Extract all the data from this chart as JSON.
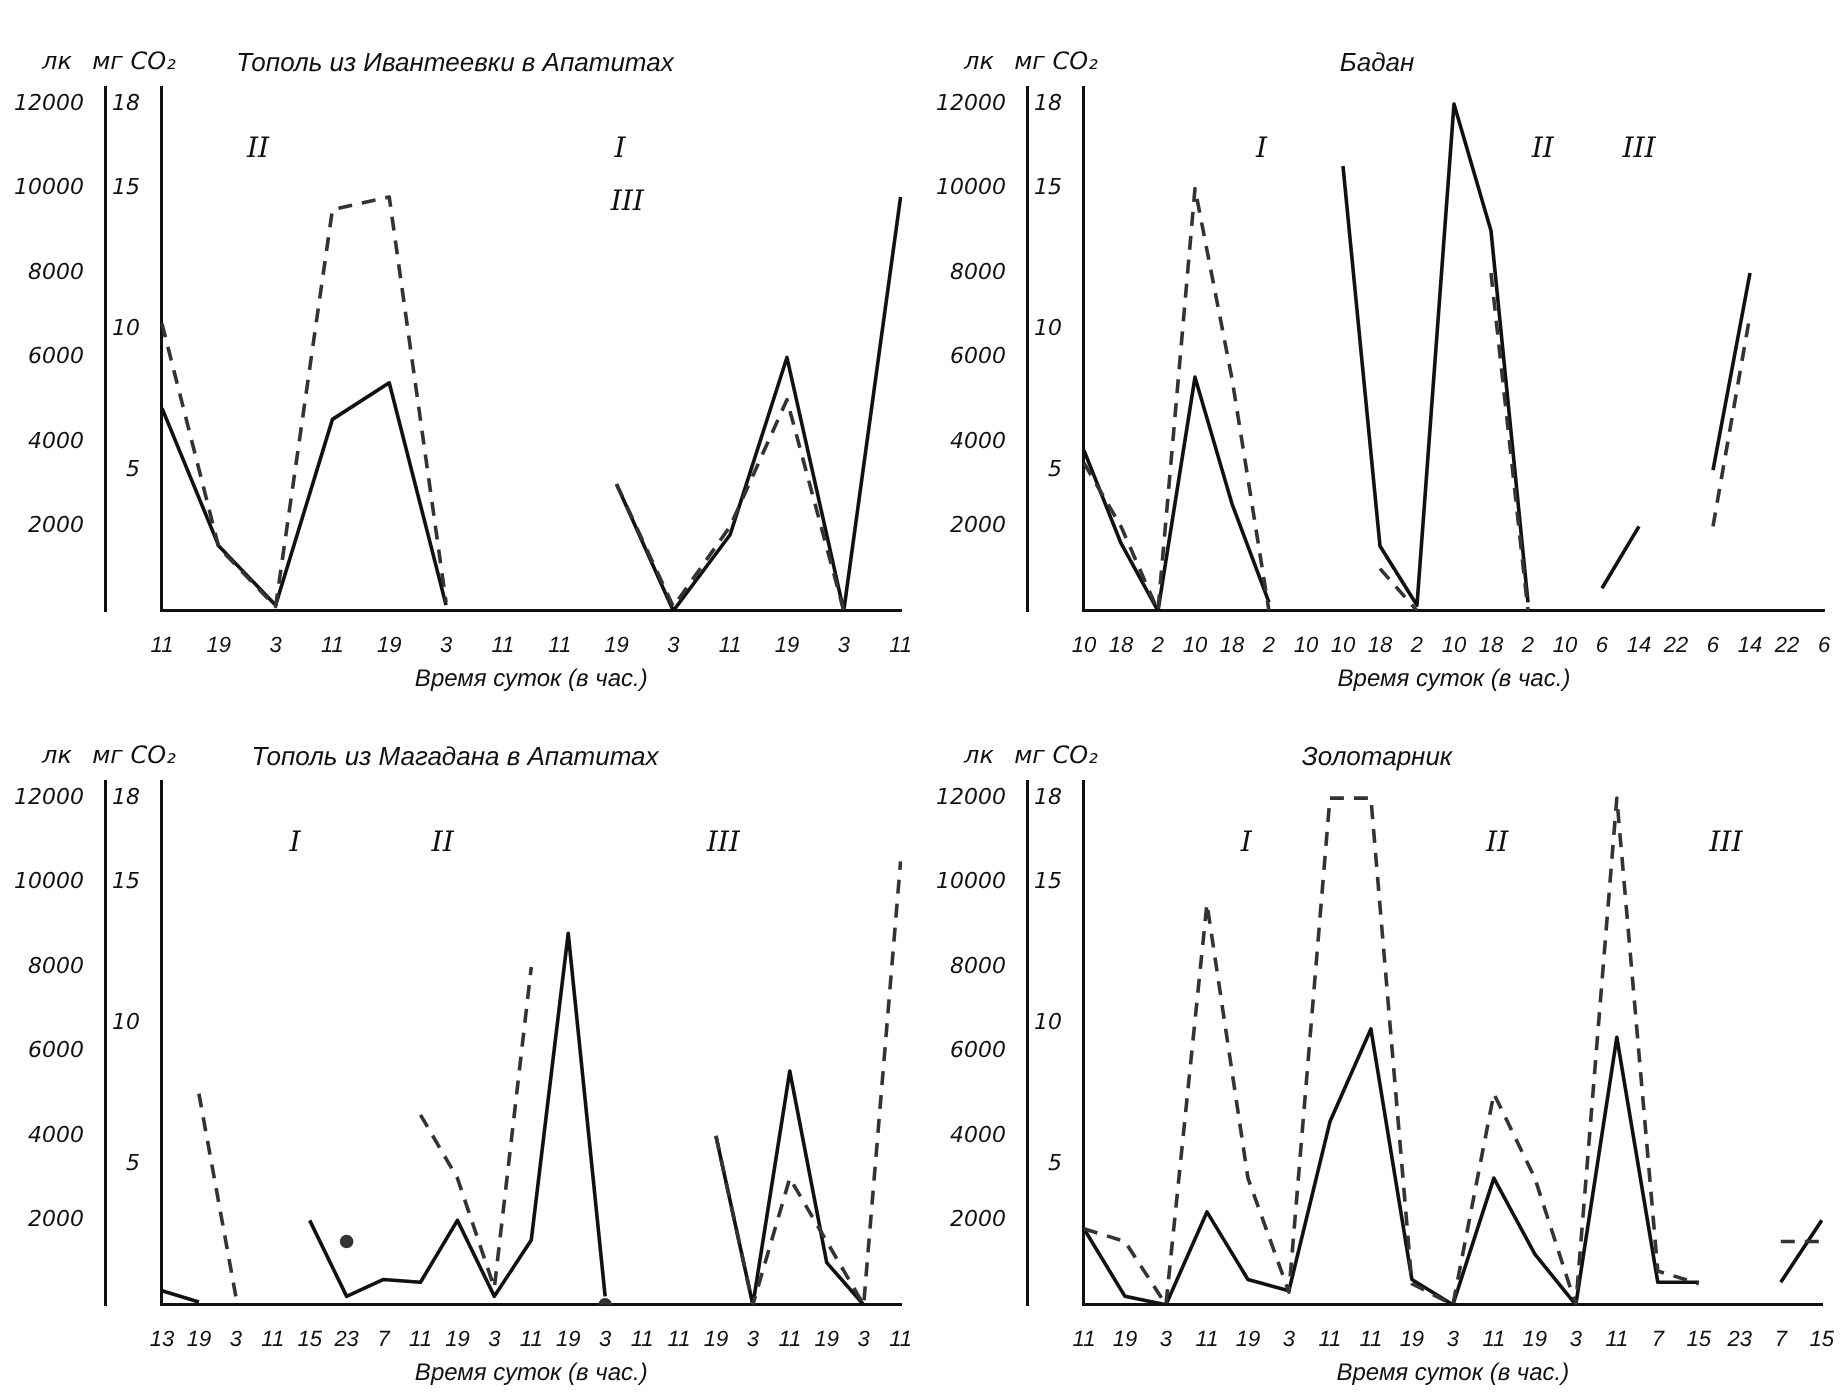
{
  "chart_data": [
    {
      "type": "line",
      "title": "Тополь из Ивантеевки в Апатитах",
      "xlabel": "Время суток (в час.)",
      "ylabel": "лк",
      "y2label": "мг CO₂",
      "categories": [
        "11",
        "19",
        "3",
        "11",
        "19",
        "3",
        "11",
        "11",
        "19",
        "3",
        "11",
        "19",
        "3",
        "11"
      ],
      "ylim": [
        0,
        12400
      ],
      "yticks": [
        2000,
        4000,
        6000,
        8000,
        10000,
        12000
      ],
      "y2lim": [
        0,
        18.6
      ],
      "y2ticks": [
        5,
        10,
        15,
        18
      ],
      "grid": false,
      "legend": false,
      "marker": "none",
      "annotations": [
        "II",
        "I",
        "III"
      ],
      "series": [
        {
          "color": "#333333",
          "line_style": "dashed",
          "values": [
            6800,
            1500,
            100,
            9500,
            9800,
            200,
            null,
            null,
            3000,
            100,
            2000,
            5000,
            0,
            null
          ]
        },
        {
          "color": "#111111",
          "line_style": "solid",
          "axis": "y2",
          "values": [
            7.2,
            2.3,
            0.2,
            6.8,
            8.1,
            0.2,
            null,
            null,
            4.5,
            0,
            2.7,
            9,
            0,
            14.7
          ]
        }
      ]
    },
    {
      "type": "line",
      "title": "Бадан",
      "xlabel": "Время суток (в час.)",
      "ylabel": "лк",
      "y2label": "мг CO₂",
      "categories": [
        "10",
        "18",
        "2",
        "10",
        "18",
        "2",
        "10",
        "10",
        "18",
        "2",
        "10",
        "18",
        "2",
        "10",
        "6",
        "14",
        "22",
        "6",
        "14",
        "22",
        "6"
      ],
      "ylim": [
        0,
        12400
      ],
      "yticks": [
        2000,
        4000,
        6000,
        8000,
        10000,
        12000
      ],
      "y2lim": [
        0,
        18.6
      ],
      "y2ticks": [
        5,
        10,
        15,
        18
      ],
      "grid": false,
      "legend": false,
      "marker": "none",
      "annotations": [
        "I",
        "II",
        "III"
      ],
      "series": [
        {
          "color": "#333333",
          "line_style": "dashed",
          "values": [
            3500,
            2000,
            0,
            10000,
            5500,
            0,
            null,
            null,
            1000,
            0,
            null,
            8000,
            0,
            null,
            null,
            null,
            null,
            2000,
            7000,
            null,
            null
          ]
        },
        {
          "color": "#111111",
          "line_style": "solid",
          "axis": "y2",
          "values": [
            5.7,
            2.4,
            0,
            8.3,
            3.8,
            0.3,
            null,
            15.8,
            2.3,
            0.2,
            18,
            13.5,
            0.3,
            null,
            0.8,
            3,
            null,
            5,
            12,
            null,
            null
          ]
        }
      ]
    },
    {
      "type": "line",
      "title": "Тополь из Магадана в Апатитах",
      "xlabel": "Время суток (в час.)",
      "ylabel": "лк",
      "y2label": "мг CO₂",
      "categories": [
        "13",
        "19",
        "3",
        "11",
        "15",
        "23",
        "7",
        "11",
        "19",
        "3",
        "11",
        "19",
        "3",
        "11",
        "11",
        "19",
        "3",
        "11",
        "19",
        "3",
        "11"
      ],
      "ylim": [
        0,
        12400
      ],
      "yticks": [
        2000,
        4000,
        6000,
        8000,
        10000,
        12000
      ],
      "y2lim": [
        0,
        18.6
      ],
      "y2ticks": [
        5,
        10,
        15,
        18
      ],
      "grid": false,
      "legend": false,
      "marker": "none",
      "annotations": [
        "I",
        "II",
        "III"
      ],
      "series": [
        {
          "color": "#333333",
          "line_style": "dashed",
          "values": [
            null,
            5000,
            200,
            null,
            null,
            1500,
            null,
            4500,
            3000,
            400,
            8000,
            null,
            0,
            null,
            null,
            4000,
            0,
            3000,
            1500,
            0,
            10500
          ]
        },
        {
          "color": "#111111",
          "line_style": "solid",
          "axis": "y2",
          "values": [
            0.5,
            0.1,
            null,
            null,
            3,
            0.3,
            0.9,
            0.8,
            3,
            0.3,
            2.3,
            13.2,
            0.3,
            null,
            null,
            6,
            0,
            8.3,
            1.5,
            0,
            null
          ]
        }
      ]
    },
    {
      "type": "line",
      "title": "Золотарник",
      "xlabel": "Время суток (в час.)",
      "ylabel": "лк",
      "y2label": "мг CO₂",
      "categories": [
        "11",
        "19",
        "3",
        "11",
        "19",
        "3",
        "11",
        "11",
        "19",
        "3",
        "11",
        "19",
        "3",
        "11",
        "7",
        "15",
        "23",
        "7",
        "15"
      ],
      "ylim": [
        0,
        12400
      ],
      "yticks": [
        2000,
        4000,
        6000,
        8000,
        10000,
        12000
      ],
      "y2lim": [
        0,
        18.6
      ],
      "y2ticks": [
        5,
        10,
        15,
        18
      ],
      "grid": false,
      "legend": false,
      "marker": "none",
      "annotations": [
        "I",
        "II",
        "III"
      ],
      "series": [
        {
          "color": "#333333",
          "line_style": "dashed",
          "values": [
            1800,
            1500,
            0,
            9500,
            3000,
            300,
            12000,
            12000,
            500,
            0,
            5000,
            3000,
            0,
            12000,
            800,
            500,
            null,
            1500,
            1500
          ]
        },
        {
          "color": "#111111",
          "line_style": "solid",
          "axis": "y2",
          "values": [
            2.7,
            0.3,
            0,
            3.3,
            0.9,
            0.5,
            6.5,
            9.8,
            0.9,
            0,
            4.5,
            1.8,
            0,
            9.5,
            0.8,
            0.8,
            null,
            0.8,
            3
          ]
        }
      ]
    }
  ]
}
